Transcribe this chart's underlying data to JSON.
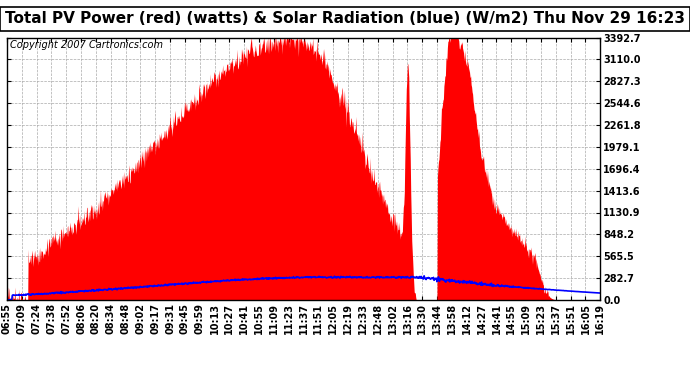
{
  "title": "Total PV Power (red) (watts) & Solar Radiation (blue) (W/m2) Thu Nov 29 16:23",
  "copyright": "Copyright 2007 Cartronics.com",
  "background_color": "#ffffff",
  "plot_bg_color": "#ffffff",
  "grid_color": "#aaaaaa",
  "yticks": [
    0.0,
    282.7,
    565.5,
    848.2,
    1130.9,
    1413.6,
    1696.4,
    1979.1,
    2261.8,
    2544.6,
    2827.3,
    3110.0,
    3392.7
  ],
  "ymax": 3392.7,
  "x_labels": [
    "06:55",
    "07:09",
    "07:24",
    "07:38",
    "07:52",
    "08:06",
    "08:20",
    "08:34",
    "08:48",
    "09:02",
    "09:17",
    "09:31",
    "09:45",
    "09:59",
    "10:13",
    "10:27",
    "10:41",
    "10:55",
    "11:09",
    "11:23",
    "11:37",
    "11:51",
    "12:05",
    "12:19",
    "12:33",
    "12:48",
    "13:02",
    "13:16",
    "13:30",
    "13:44",
    "13:58",
    "14:12",
    "14:27",
    "14:41",
    "14:55",
    "15:09",
    "15:23",
    "15:37",
    "15:51",
    "16:05",
    "16:19"
  ],
  "pv_color": "#ff0000",
  "solar_color": "#0000ff",
  "title_fontsize": 11,
  "tick_fontsize": 7,
  "copyright_fontsize": 7
}
